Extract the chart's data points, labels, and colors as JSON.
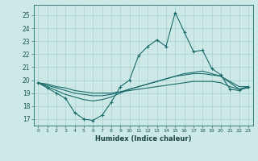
{
  "x": [
    0,
    1,
    2,
    3,
    4,
    5,
    6,
    7,
    8,
    9,
    10,
    11,
    12,
    13,
    14,
    15,
    16,
    17,
    18,
    19,
    20,
    21,
    22,
    23
  ],
  "line1": [
    19.8,
    19.4,
    19.0,
    18.6,
    17.5,
    17.0,
    16.9,
    17.3,
    18.3,
    19.5,
    20.0,
    21.9,
    22.6,
    23.1,
    22.6,
    25.2,
    23.7,
    22.2,
    22.3,
    20.9,
    20.4,
    19.3,
    19.2,
    19.5
  ],
  "line2": [
    19.8,
    19.5,
    19.2,
    18.9,
    18.7,
    18.5,
    18.4,
    18.5,
    18.7,
    19.0,
    19.3,
    19.5,
    19.7,
    19.9,
    20.1,
    20.3,
    20.5,
    20.6,
    20.7,
    20.5,
    20.3,
    19.8,
    19.3,
    19.5
  ],
  "line3": [
    19.8,
    19.6,
    19.4,
    19.2,
    19.0,
    18.9,
    18.8,
    18.8,
    18.9,
    19.1,
    19.3,
    19.5,
    19.7,
    19.9,
    20.1,
    20.3,
    20.4,
    20.5,
    20.5,
    20.4,
    20.3,
    19.9,
    19.5,
    19.5
  ],
  "line4": [
    19.8,
    19.7,
    19.5,
    19.4,
    19.2,
    19.1,
    19.0,
    19.0,
    19.0,
    19.1,
    19.2,
    19.3,
    19.4,
    19.5,
    19.6,
    19.7,
    19.8,
    19.9,
    19.9,
    19.9,
    19.8,
    19.5,
    19.3,
    19.4
  ],
  "bg_color": "#cce9e7",
  "grid_color": "#aacfcc",
  "line_color": "#1a6b6b",
  "ylabel_values": [
    17,
    18,
    19,
    20,
    21,
    22,
    23,
    24,
    25
  ],
  "xlabel": "Humidex (Indice chaleur)",
  "ylim": [
    16.5,
    25.8
  ],
  "xlim": [
    -0.5,
    23.5
  ]
}
